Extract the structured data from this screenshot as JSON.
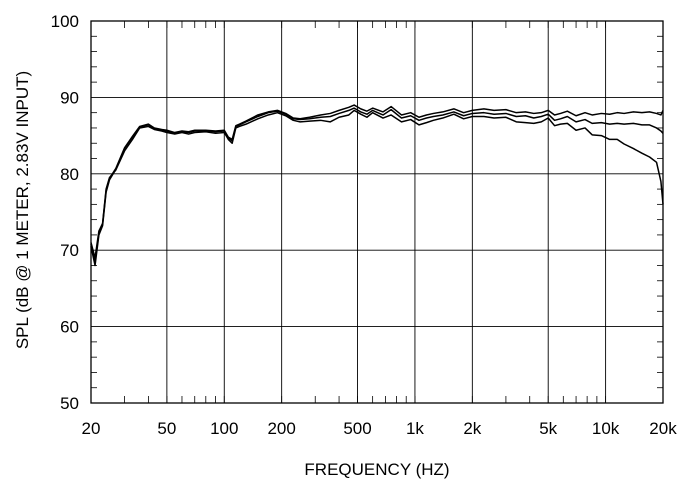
{
  "chart_data": {
    "type": "line",
    "title": "",
    "xlabel": "FREQUENCY  (HZ)",
    "ylabel": "SPL (dB @ 1 METER, 2.83V INPUT)",
    "xscale": "log",
    "xlim": [
      20,
      20000
    ],
    "ylim": [
      50,
      100
    ],
    "grid": true,
    "x_ticks": [
      20,
      50,
      100,
      200,
      500,
      1000,
      2000,
      5000,
      10000,
      20000
    ],
    "x_tick_labels": [
      "20",
      "50",
      "100",
      "200",
      "500",
      "1k",
      "2k",
      "5k",
      "10k",
      "20k"
    ],
    "y_ticks": [
      50,
      60,
      70,
      80,
      90,
      100
    ],
    "y_tick_labels": [
      "50",
      "60",
      "70",
      "80",
      "90",
      "100"
    ],
    "series": [
      {
        "x": [
          20,
          21,
          22,
          23,
          24,
          25,
          27,
          30,
          33,
          36,
          40,
          43,
          47,
          50,
          55,
          60,
          65,
          70,
          80,
          90,
          100,
          105,
          110,
          115,
          120,
          130,
          150,
          170,
          190,
          210,
          230,
          250,
          280,
          320,
          360,
          400,
          450,
          480,
          520,
          560,
          600,
          680,
          750,
          850,
          950,
          1050,
          1150,
          1250,
          1400,
          1600,
          1800,
          2000,
          2300,
          2600,
          3000,
          3400,
          3800,
          4200,
          4600,
          5000,
          5400,
          5800,
          6300,
          7000,
          7800,
          8500,
          9500,
          10500,
          11500,
          12500,
          14000,
          15500,
          17000,
          18500,
          19500,
          20000
        ],
        "y": [
          71,
          69,
          72.5,
          73.5,
          78,
          79.5,
          80.5,
          83,
          84.5,
          86,
          86.2,
          85.8,
          85.6,
          85.4,
          85.2,
          85.4,
          85.2,
          85.4,
          85.5,
          85.3,
          85.4,
          84.5,
          84,
          86,
          86.2,
          86.5,
          87.2,
          87.7,
          88,
          87.6,
          87,
          86.8,
          86.9,
          87,
          86.8,
          87.4,
          87.7,
          88.3,
          87.8,
          87.4,
          88,
          87.3,
          87.7,
          86.8,
          87.1,
          86.4,
          86.7,
          87,
          87.3,
          87.8,
          87.2,
          87.5,
          87.5,
          87.3,
          87.4,
          86.8,
          86.7,
          86.6,
          86.8,
          87.3,
          86.3,
          86.5,
          86.6,
          85.7,
          86,
          85.1,
          85,
          84.5,
          84.5,
          83.9,
          83.3,
          82.7,
          82.2,
          81.5,
          79,
          76
        ]
      },
      {
        "x": [
          20,
          21,
          22,
          23,
          24,
          25,
          27,
          30,
          33,
          36,
          40,
          43,
          47,
          50,
          55,
          60,
          65,
          70,
          80,
          90,
          100,
          105,
          110,
          115,
          120,
          130,
          150,
          170,
          190,
          210,
          230,
          250,
          280,
          320,
          360,
          400,
          450,
          480,
          520,
          560,
          600,
          680,
          750,
          850,
          950,
          1050,
          1150,
          1250,
          1400,
          1600,
          1800,
          2000,
          2300,
          2600,
          3000,
          3400,
          3800,
          4200,
          4600,
          5000,
          5400,
          5800,
          6300,
          7000,
          7800,
          8500,
          9500,
          10500,
          11500,
          12500,
          14000,
          15500,
          17000,
          18500,
          19500,
          20000
        ],
        "y": [
          70.5,
          68,
          72,
          73.2,
          77.6,
          79.2,
          80.6,
          83.3,
          84.8,
          86.1,
          86.4,
          85.9,
          85.7,
          85.6,
          85.3,
          85.5,
          85.4,
          85.6,
          85.6,
          85.5,
          85.6,
          84.7,
          84.3,
          86.2,
          86.4,
          86.8,
          87.5,
          88,
          88.2,
          87.8,
          87.2,
          87.1,
          87.2,
          87.4,
          87.5,
          87.9,
          88.3,
          88.6,
          88.1,
          87.8,
          88.3,
          87.7,
          88.4,
          87.3,
          87.6,
          87,
          87.3,
          87.5,
          87.7,
          88.1,
          87.6,
          87.9,
          88,
          87.8,
          87.9,
          87.5,
          87.6,
          87.3,
          87.5,
          87.8,
          87,
          87.2,
          87.5,
          86.8,
          87.1,
          86.6,
          86.7,
          86.5,
          86.6,
          86.5,
          86.6,
          86.4,
          86.4,
          86,
          85.6,
          85.3
        ]
      },
      {
        "x": [
          20,
          21,
          22,
          23,
          24,
          25,
          27,
          30,
          33,
          36,
          40,
          43,
          47,
          50,
          55,
          60,
          65,
          70,
          80,
          90,
          100,
          105,
          110,
          115,
          120,
          130,
          150,
          170,
          190,
          210,
          230,
          250,
          280,
          320,
          360,
          400,
          450,
          480,
          520,
          560,
          600,
          680,
          750,
          850,
          950,
          1050,
          1150,
          1250,
          1400,
          1600,
          1800,
          2000,
          2300,
          2600,
          3000,
          3400,
          3800,
          4200,
          4600,
          5000,
          5400,
          5800,
          6300,
          7000,
          7800,
          8500,
          9500,
          10500,
          11500,
          12500,
          14000,
          15500,
          17000,
          18500,
          19500,
          20000
        ],
        "y": [
          70.8,
          68.5,
          72.2,
          73.4,
          77.8,
          79.4,
          80.7,
          83.4,
          84.9,
          86.2,
          86.5,
          86,
          85.8,
          85.7,
          85.4,
          85.6,
          85.5,
          85.7,
          85.7,
          85.6,
          85.7,
          84.8,
          84.5,
          86.3,
          86.5,
          86.9,
          87.7,
          88.1,
          88.3,
          87.9,
          87.3,
          87.2,
          87.4,
          87.7,
          87.9,
          88.3,
          88.7,
          89,
          88.5,
          88.2,
          88.6,
          88.1,
          88.8,
          87.7,
          88,
          87.4,
          87.7,
          87.9,
          88.1,
          88.5,
          88,
          88.3,
          88.5,
          88.3,
          88.4,
          88,
          88.1,
          87.9,
          88,
          88.3,
          87.7,
          87.9,
          88.2,
          87.6,
          88,
          87.7,
          87.9,
          87.8,
          88,
          87.9,
          88.1,
          88,
          88.1,
          87.9,
          87.7,
          88.3
        ]
      }
    ]
  }
}
